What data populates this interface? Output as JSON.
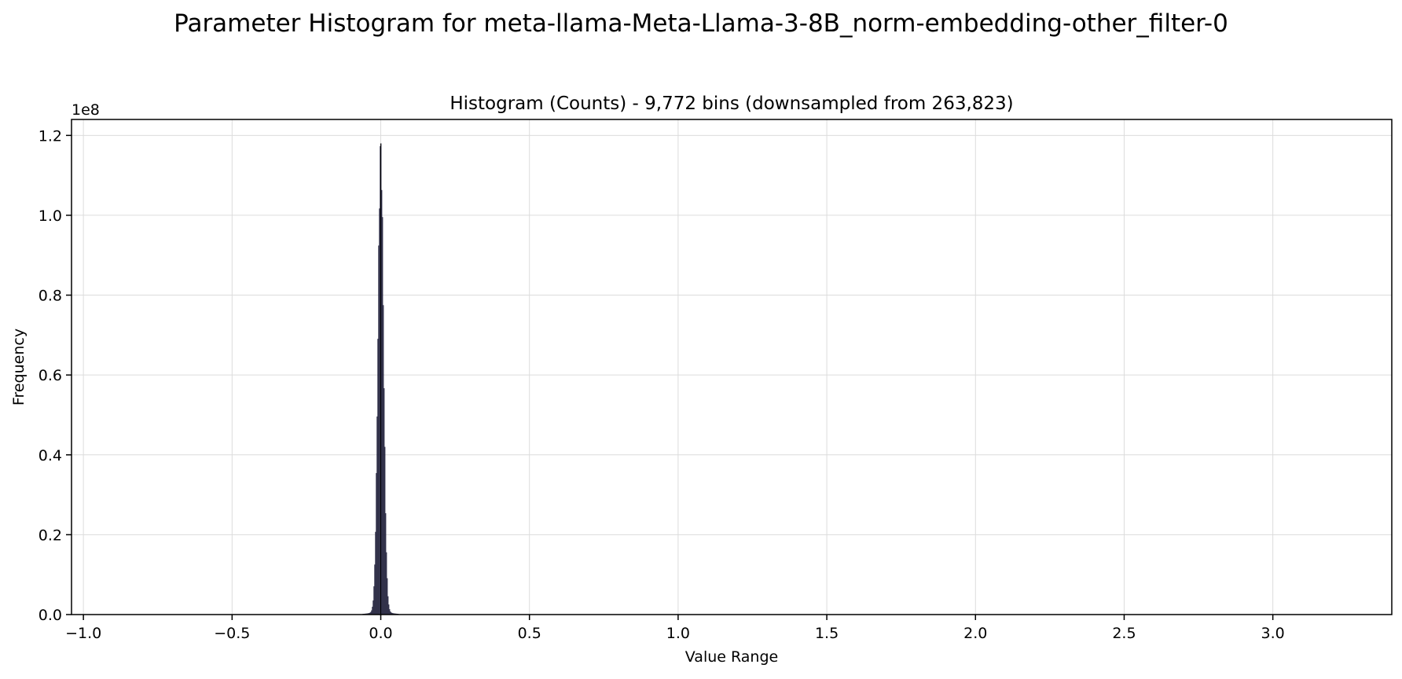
{
  "figure": {
    "suptitle": "Parameter Histogram for meta-llama-Meta-Llama-3-8B_norm-embedding-other_filter-0"
  },
  "chart_data": {
    "type": "bar",
    "title": "Histogram (Counts) - 9,772 bins (downsampled from 263,823)",
    "xlabel": "Value Range",
    "ylabel": "Frequency",
    "y_offset_label": "1e8",
    "xlim": [
      -1.04,
      3.4
    ],
    "ylim": [
      0,
      1.24
    ],
    "y_scale": 100000000,
    "xticks": [
      -1.0,
      -0.5,
      0.0,
      0.5,
      1.0,
      1.5,
      2.0,
      2.5,
      3.0
    ],
    "xtick_labels": [
      "−1.0",
      "−0.5",
      "0.0",
      "0.5",
      "1.0",
      "1.5",
      "2.0",
      "2.5",
      "3.0"
    ],
    "yticks": [
      0.0,
      0.2,
      0.4,
      0.6,
      0.8,
      1.0,
      1.2
    ],
    "ytick_labels": [
      "0.0",
      "0.2",
      "0.4",
      "0.6",
      "0.8",
      "1.0",
      "1.2"
    ],
    "grid": true,
    "bar_color": "#1f1f3a",
    "edge_color": "#000000",
    "distribution": {
      "shape": "sharp unimodal spike",
      "center": 0.0,
      "peak_count_1e8": 1.18,
      "approx_support": [
        -0.06,
        0.06
      ],
      "approx_std": 0.0095
    },
    "series": [
      {
        "name": "Counts",
        "x": [
          -0.05,
          -0.045,
          -0.04,
          -0.035,
          -0.03,
          -0.025,
          -0.02,
          -0.015,
          -0.01,
          -0.005,
          0.0,
          0.005,
          0.01,
          0.015,
          0.02,
          0.025,
          0.03,
          0.035,
          0.04,
          0.045,
          0.05
        ],
        "values": [
          0.0,
          0.002,
          0.005,
          0.012,
          0.03,
          0.07,
          0.15,
          0.35,
          0.65,
          0.98,
          1.18,
          0.98,
          0.65,
          0.35,
          0.15,
          0.07,
          0.03,
          0.012,
          0.005,
          0.002,
          0.0
        ]
      }
    ]
  }
}
